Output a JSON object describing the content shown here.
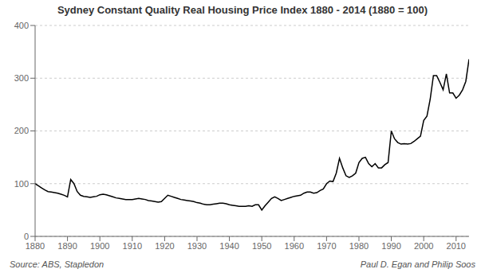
{
  "chart_data": {
    "type": "line",
    "title": "Sydney Constant Quality Real Housing Price Index 1880 - 2014 (1880 = 100)",
    "annotations": [
      "Source: ABS, Stapledon",
      "Paul D. Egan and Philip Soos"
    ],
    "color": "#000000",
    "grid": true,
    "xlim": [
      1880,
      2014
    ],
    "xticks": [
      1880,
      1890,
      1900,
      1910,
      1920,
      1930,
      1940,
      1950,
      1960,
      1970,
      1980,
      1990,
      2000,
      2010
    ],
    "ylim": [
      0,
      400
    ],
    "yticks": [
      0,
      100,
      200,
      300,
      400
    ],
    "x": [
      1880,
      1881,
      1882,
      1883,
      1884,
      1885,
      1886,
      1887,
      1888,
      1889,
      1890,
      1891,
      1892,
      1893,
      1894,
      1895,
      1896,
      1897,
      1898,
      1899,
      1900,
      1901,
      1902,
      1903,
      1904,
      1905,
      1906,
      1907,
      1908,
      1909,
      1910,
      1911,
      1912,
      1913,
      1914,
      1915,
      1916,
      1917,
      1918,
      1919,
      1920,
      1921,
      1922,
      1923,
      1924,
      1925,
      1926,
      1927,
      1928,
      1929,
      1930,
      1931,
      1932,
      1933,
      1934,
      1935,
      1936,
      1937,
      1938,
      1939,
      1940,
      1941,
      1942,
      1943,
      1944,
      1945,
      1946,
      1947,
      1948,
      1949,
      1950,
      1951,
      1952,
      1953,
      1954,
      1955,
      1956,
      1957,
      1958,
      1959,
      1960,
      1961,
      1962,
      1963,
      1964,
      1965,
      1966,
      1967,
      1968,
      1969,
      1970,
      1971,
      1972,
      1973,
      1974,
      1975,
      1976,
      1977,
      1978,
      1979,
      1980,
      1981,
      1982,
      1983,
      1984,
      1985,
      1986,
      1987,
      1988,
      1989,
      1990,
      1991,
      1992,
      1993,
      1994,
      1995,
      1996,
      1997,
      1998,
      1999,
      2000,
      2001,
      2002,
      2003,
      2004,
      2005,
      2006,
      2007,
      2008,
      2009,
      2010,
      2011,
      2012,
      2013,
      2014
    ],
    "values": [
      100,
      96,
      92,
      88,
      85,
      84,
      83,
      82,
      80,
      78,
      75,
      108,
      100,
      85,
      78,
      76,
      75,
      74,
      75,
      76,
      79,
      80,
      79,
      77,
      75,
      73,
      72,
      71,
      70,
      70,
      70,
      71,
      72,
      71,
      70,
      68,
      67,
      66,
      65,
      66,
      72,
      78,
      76,
      74,
      72,
      70,
      69,
      68,
      67,
      66,
      64,
      63,
      61,
      60,
      60,
      61,
      62,
      63,
      63,
      62,
      60,
      59,
      58,
      57,
      57,
      57,
      58,
      57,
      60,
      60,
      50,
      58,
      65,
      72,
      75,
      72,
      68,
      70,
      72,
      74,
      76,
      77,
      78,
      82,
      84,
      84,
      82,
      83,
      87,
      90,
      100,
      105,
      104,
      120,
      148,
      130,
      115,
      112,
      115,
      120,
      140,
      148,
      150,
      138,
      132,
      138,
      130,
      130,
      136,
      140,
      200,
      185,
      178,
      175,
      176,
      175,
      176,
      180,
      185,
      190,
      220,
      228,
      260,
      305,
      305,
      292,
      278,
      308,
      272,
      272,
      262,
      268,
      278,
      294,
      336
    ]
  }
}
